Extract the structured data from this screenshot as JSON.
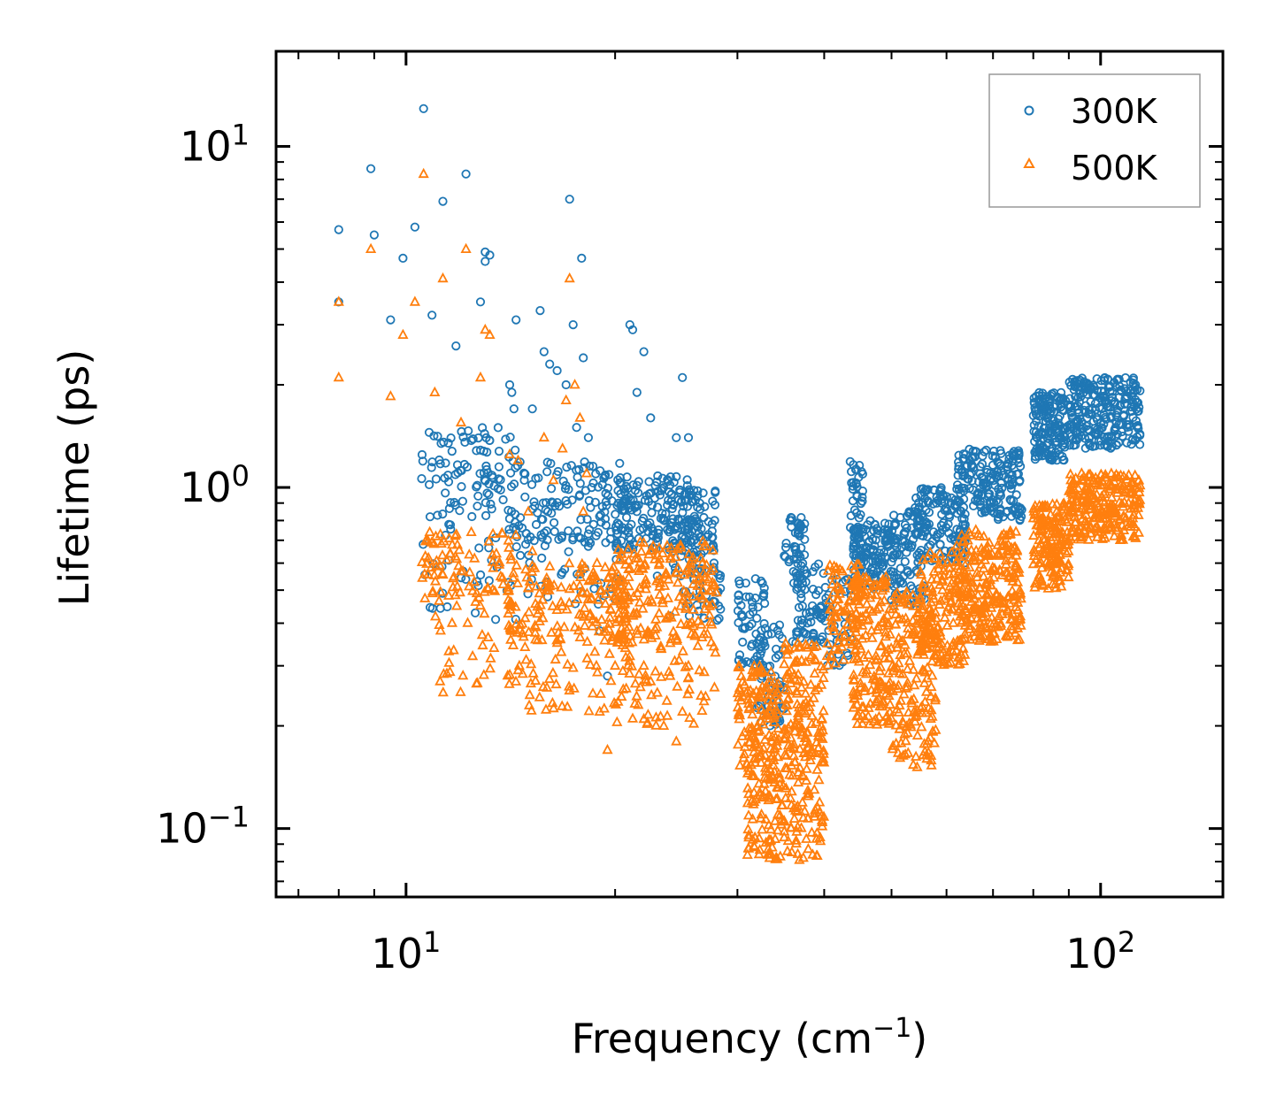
{
  "chart_data": {
    "type": "scatter",
    "title": "",
    "xlabel": "Frequency (cm",
    "xlabel_sup": "−1",
    "xlabel_end": ")",
    "ylabel": "Lifetime (ps)",
    "xscale": "log",
    "yscale": "log",
    "xlim": [
      6.5,
      150
    ],
    "ylim": [
      0.063,
      19
    ],
    "x_ticks": [
      {
        "value": 10,
        "base": "10",
        "exp": "1"
      },
      {
        "value": 100,
        "base": "10",
        "exp": "2"
      }
    ],
    "y_ticks": [
      {
        "value": 0.1,
        "base": "10",
        "exp": "−1"
      },
      {
        "value": 1,
        "base": "10",
        "exp": "0"
      },
      {
        "value": 10,
        "base": "10",
        "exp": "1"
      }
    ],
    "legend_position": "top-right",
    "series": [
      {
        "name": "300K",
        "marker": "circle",
        "color": "#1f77b4",
        "points": [
          [
            8.0,
            5.7
          ],
          [
            8.0,
            3.5
          ],
          [
            8.9,
            8.6
          ],
          [
            9.0,
            5.5
          ],
          [
            9.5,
            3.1
          ],
          [
            9.9,
            4.7
          ],
          [
            10.3,
            5.8
          ],
          [
            10.6,
            12.9
          ],
          [
            10.9,
            3.2
          ],
          [
            11.3,
            6.9
          ],
          [
            11.8,
            2.6
          ],
          [
            12.2,
            8.3
          ],
          [
            12.8,
            3.5
          ],
          [
            13.0,
            4.9
          ],
          [
            13.0,
            4.6
          ],
          [
            13.2,
            4.8
          ],
          [
            13.8,
            0.92
          ],
          [
            14.1,
            2.0
          ],
          [
            14.2,
            1.9
          ],
          [
            14.3,
            1.7
          ],
          [
            14.4,
            3.1
          ],
          [
            14.8,
            1.05
          ],
          [
            15.2,
            1.7
          ],
          [
            15.6,
            3.3
          ],
          [
            15.8,
            2.5
          ],
          [
            16.0,
            0.85
          ],
          [
            16.1,
            2.3
          ],
          [
            16.5,
            2.2
          ],
          [
            17.0,
            2.0
          ],
          [
            17.2,
            7.0
          ],
          [
            17.4,
            3.0
          ],
          [
            17.6,
            1.5
          ],
          [
            17.9,
            4.7
          ],
          [
            18.0,
            2.4
          ],
          [
            18.3,
            1.4
          ],
          [
            18.5,
            1.0
          ],
          [
            19.0,
            0.38
          ],
          [
            19.5,
            0.28
          ],
          [
            20.0,
            0.47
          ],
          [
            20.5,
            0.9
          ],
          [
            21.0,
            3.0
          ],
          [
            21.2,
            2.9
          ],
          [
            21.5,
            1.9
          ],
          [
            22.0,
            2.5
          ],
          [
            22.5,
            1.6
          ],
          [
            23.0,
            0.55
          ],
          [
            23.5,
            1.0
          ],
          [
            24.0,
            0.42
          ],
          [
            24.5,
            1.4
          ],
          [
            25.0,
            2.1
          ],
          [
            25.5,
            1.4
          ]
        ],
        "clusters": [
          {
            "x": [
              10.5,
              14.5
            ],
            "y": [
              0.9,
              1.5
            ],
            "n": 80
          },
          {
            "x": [
              10.5,
              14.5
            ],
            "y": [
              0.4,
              0.9
            ],
            "n": 45
          },
          {
            "x": [
              14.0,
              21.0
            ],
            "y": [
              0.7,
              1.2
            ],
            "n": 130
          },
          {
            "x": [
              14.0,
              21.0
            ],
            "y": [
              0.45,
              0.75
            ],
            "n": 45
          },
          {
            "x": [
              20.0,
              26.0
            ],
            "y": [
              0.65,
              1.1
            ],
            "n": 150
          },
          {
            "x": [
              24.0,
              28.0
            ],
            "y": [
              0.55,
              1.0
            ],
            "n": 90
          },
          {
            "x": [
              25.0,
              28.5
            ],
            "y": [
              0.4,
              0.6
            ],
            "n": 35
          },
          {
            "x": [
              30.0,
              33.0
            ],
            "y": [
              0.3,
              0.55
            ],
            "n": 60
          },
          {
            "x": [
              32.0,
              35.0
            ],
            "y": [
              0.2,
              0.4
            ],
            "n": 60
          },
          {
            "x": [
              35.0,
              37.5
            ],
            "y": [
              0.55,
              0.85
            ],
            "n": 40
          },
          {
            "x": [
              36.0,
              40.0
            ],
            "y": [
              0.35,
              0.6
            ],
            "n": 70
          },
          {
            "x": [
              40.0,
              44.0
            ],
            "y": [
              0.3,
              0.55
            ],
            "n": 40
          },
          {
            "x": [
              43.5,
              45.5
            ],
            "y": [
              0.7,
              1.2
            ],
            "n": 40
          },
          {
            "x": [
              44.0,
              50.0
            ],
            "y": [
              0.5,
              0.8
            ],
            "n": 120
          },
          {
            "x": [
              50.0,
              56.0
            ],
            "y": [
              0.45,
              0.85
            ],
            "n": 100
          },
          {
            "x": [
              54.0,
              64.0
            ],
            "y": [
              0.6,
              1.0
            ],
            "n": 130
          },
          {
            "x": [
              62.0,
              77.0
            ],
            "y": [
              0.8,
              1.3
            ],
            "n": 180
          },
          {
            "x": [
              80.0,
              89.0
            ],
            "y": [
              1.2,
              1.9
            ],
            "n": 150
          },
          {
            "x": [
              89.0,
              114.0
            ],
            "y": [
              1.3,
              2.1
            ],
            "n": 260
          }
        ]
      },
      {
        "name": "500K",
        "marker": "triangle",
        "color": "#ff7f0e",
        "points": [
          [
            8.0,
            3.5
          ],
          [
            8.0,
            2.1
          ],
          [
            8.9,
            5.0
          ],
          [
            9.5,
            1.85
          ],
          [
            9.9,
            2.8
          ],
          [
            10.3,
            3.5
          ],
          [
            10.6,
            8.3
          ],
          [
            11.0,
            1.9
          ],
          [
            11.3,
            4.1
          ],
          [
            12.0,
            1.55
          ],
          [
            12.2,
            5.0
          ],
          [
            12.8,
            2.1
          ],
          [
            13.0,
            2.9
          ],
          [
            13.2,
            2.8
          ],
          [
            13.8,
            0.52
          ],
          [
            14.1,
            1.25
          ],
          [
            14.5,
            1.2
          ],
          [
            15.0,
            0.85
          ],
          [
            15.2,
            0.65
          ],
          [
            15.8,
            1.4
          ],
          [
            16.0,
            0.5
          ],
          [
            16.3,
            1.05
          ],
          [
            16.8,
            1.3
          ],
          [
            17.0,
            1.8
          ],
          [
            17.2,
            4.1
          ],
          [
            17.5,
            2.0
          ],
          [
            17.8,
            1.6
          ],
          [
            18.0,
            0.85
          ],
          [
            18.2,
            1.1
          ],
          [
            18.5,
            0.55
          ],
          [
            18.8,
            0.3
          ],
          [
            19.0,
            0.22
          ],
          [
            19.5,
            0.17
          ],
          [
            20.0,
            0.3
          ],
          [
            20.5,
            0.45
          ],
          [
            21.0,
            0.32
          ],
          [
            21.2,
            0.21
          ],
          [
            21.5,
            0.38
          ],
          [
            22.0,
            0.3
          ],
          [
            22.5,
            0.27
          ],
          [
            23.0,
            0.25
          ],
          [
            23.5,
            0.2
          ],
          [
            24.0,
            0.28
          ],
          [
            24.5,
            0.18
          ],
          [
            25.0,
            0.22
          ],
          [
            25.5,
            0.3
          ]
        ],
        "clusters": [
          {
            "x": [
              10.5,
              14.5
            ],
            "y": [
              0.45,
              0.75
            ],
            "n": 90
          },
          {
            "x": [
              11.0,
              14.5
            ],
            "y": [
              0.25,
              0.45
            ],
            "n": 30
          },
          {
            "x": [
              14.0,
              21.0
            ],
            "y": [
              0.35,
              0.6
            ],
            "n": 170
          },
          {
            "x": [
              14.0,
              21.0
            ],
            "y": [
              0.22,
              0.36
            ],
            "n": 50
          },
          {
            "x": [
              20.0,
              28.0
            ],
            "y": [
              0.35,
              0.7
            ],
            "n": 190
          },
          {
            "x": [
              20.0,
              28.0
            ],
            "y": [
              0.2,
              0.35
            ],
            "n": 60
          },
          {
            "x": [
              30.0,
              34.5
            ],
            "y": [
              0.15,
              0.3
            ],
            "n": 140
          },
          {
            "x": [
              31.0,
              35.0
            ],
            "y": [
              0.08,
              0.15
            ],
            "n": 90
          },
          {
            "x": [
              35.0,
              40.0
            ],
            "y": [
              0.15,
              0.35
            ],
            "n": 140
          },
          {
            "x": [
              35.0,
              40.0
            ],
            "y": [
              0.08,
              0.15
            ],
            "n": 70
          },
          {
            "x": [
              40.0,
              45.0
            ],
            "y": [
              0.3,
              0.6
            ],
            "n": 80
          },
          {
            "x": [
              44.0,
              50.0
            ],
            "y": [
              0.2,
              0.55
            ],
            "n": 170
          },
          {
            "x": [
              50.0,
              58.0
            ],
            "y": [
              0.15,
              0.5
            ],
            "n": 160
          },
          {
            "x": [
              55.0,
              64.0
            ],
            "y": [
              0.3,
              0.65
            ],
            "n": 160
          },
          {
            "x": [
              62.0,
              77.0
            ],
            "y": [
              0.35,
              0.75
            ],
            "n": 260
          },
          {
            "x": [
              80.0,
              90.0
            ],
            "y": [
              0.5,
              0.9
            ],
            "n": 170
          },
          {
            "x": [
              90.0,
              114.0
            ],
            "y": [
              0.7,
              1.1
            ],
            "n": 250
          }
        ]
      }
    ]
  }
}
